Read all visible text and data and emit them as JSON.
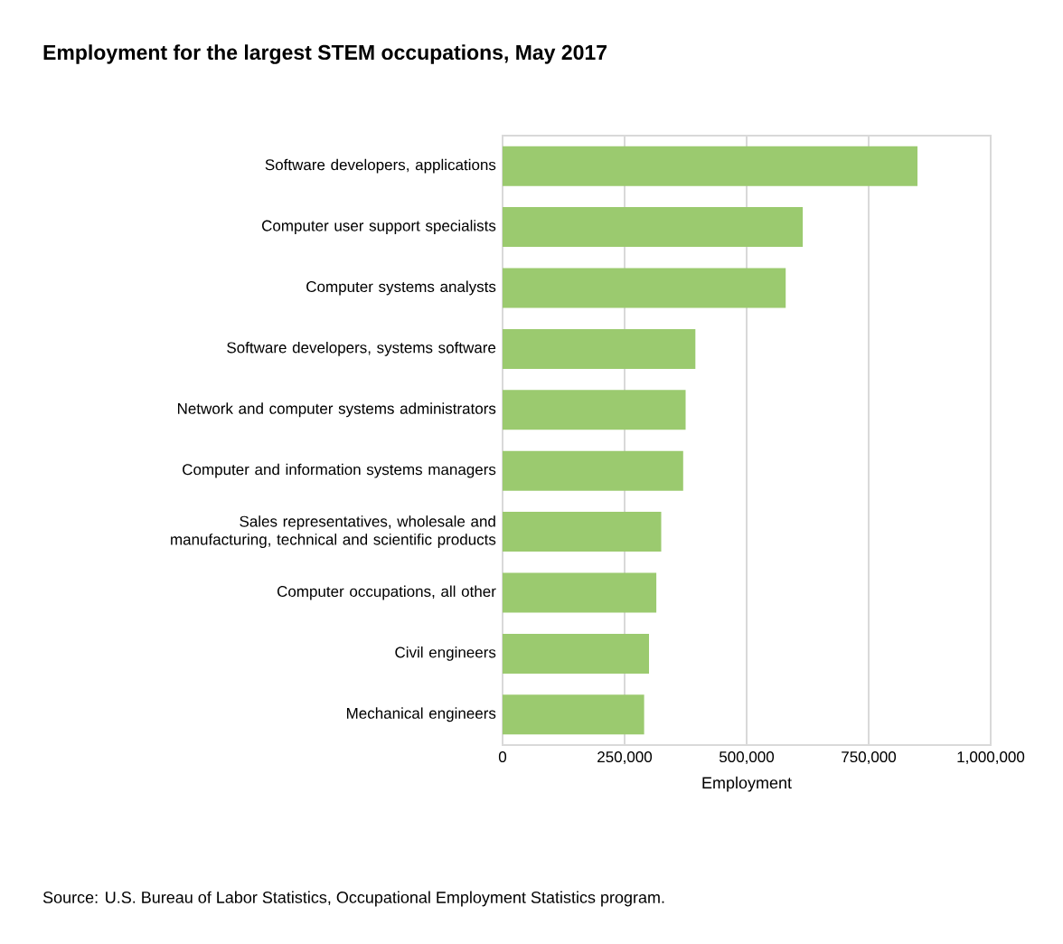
{
  "chart_data": {
    "type": "bar",
    "orientation": "horizontal",
    "title": "Employment for the largest STEM occupations, May 2017",
    "categories": [
      "Software developers, applications",
      "Computer user support specialists",
      "Computer systems analysts",
      "Software developers, systems software",
      "Network and computer systems administrators",
      "Computer and information systems managers",
      "Sales representatives, wholesale and manufacturing, technical and scientific products",
      "Computer occupations, all other",
      "Civil engineers",
      "Mechanical engineers"
    ],
    "values": [
      850000,
      615000,
      580000,
      395000,
      375000,
      370000,
      325000,
      315000,
      300000,
      290000
    ],
    "color": "#9bca6f",
    "xlabel": "Employment",
    "xlim": [
      0,
      1000000
    ],
    "xticks": [
      0,
      {
        "value": 250000,
        "label": "250,000"
      },
      {
        "value": 500000,
        "label": "500,000"
      },
      {
        "value": 750000,
        "label": "750,000"
      },
      {
        "value": 1000000,
        "label": "1,000,000"
      }
    ],
    "grid": "x",
    "annotations": [
      "Source: U.S. Bureau of Labor Statistics, Occupational Employment Statistics program."
    ]
  }
}
